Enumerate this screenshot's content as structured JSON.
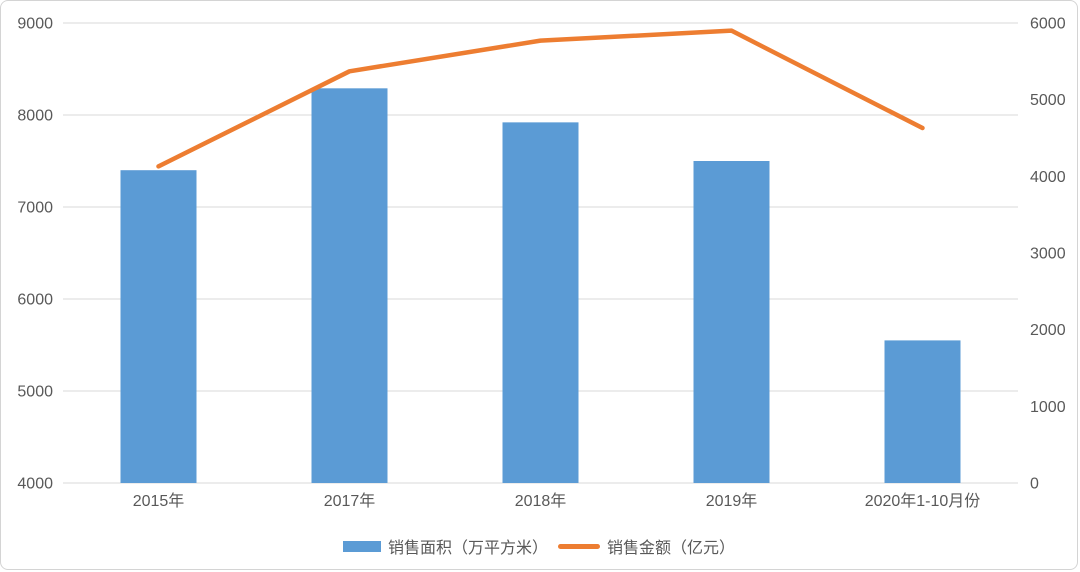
{
  "chart_data": {
    "type": "bar",
    "subtype": "combo-bar-line",
    "title": "",
    "categories": [
      "2015年",
      "2017年",
      "2018年",
      "2019年",
      "2020年1-10月份"
    ],
    "series": [
      {
        "name": "销售面积（万平方米）",
        "type": "bar",
        "axis": "left",
        "values": [
          7400,
          8290,
          7920,
          7500,
          5550
        ]
      },
      {
        "name": "销售金额（亿元）",
        "type": "line",
        "axis": "right",
        "values": [
          4130,
          5370,
          5770,
          5900,
          4630
        ]
      }
    ],
    "left_axis": {
      "min": 4000,
      "max": 9000,
      "ticks": [
        9000,
        8000,
        7000,
        6000,
        5000,
        4000
      ]
    },
    "right_axis": {
      "min": 0,
      "max": 6000,
      "ticks": [
        6000,
        5000,
        4000,
        3000,
        2000,
        1000,
        0
      ]
    },
    "grid": true,
    "legend_position": "bottom"
  },
  "colors": {
    "bar": "#5B9BD5",
    "line": "#ED7D31",
    "grid": "#D9D9D9",
    "text": "#595959",
    "background": "#FFFFFF"
  }
}
